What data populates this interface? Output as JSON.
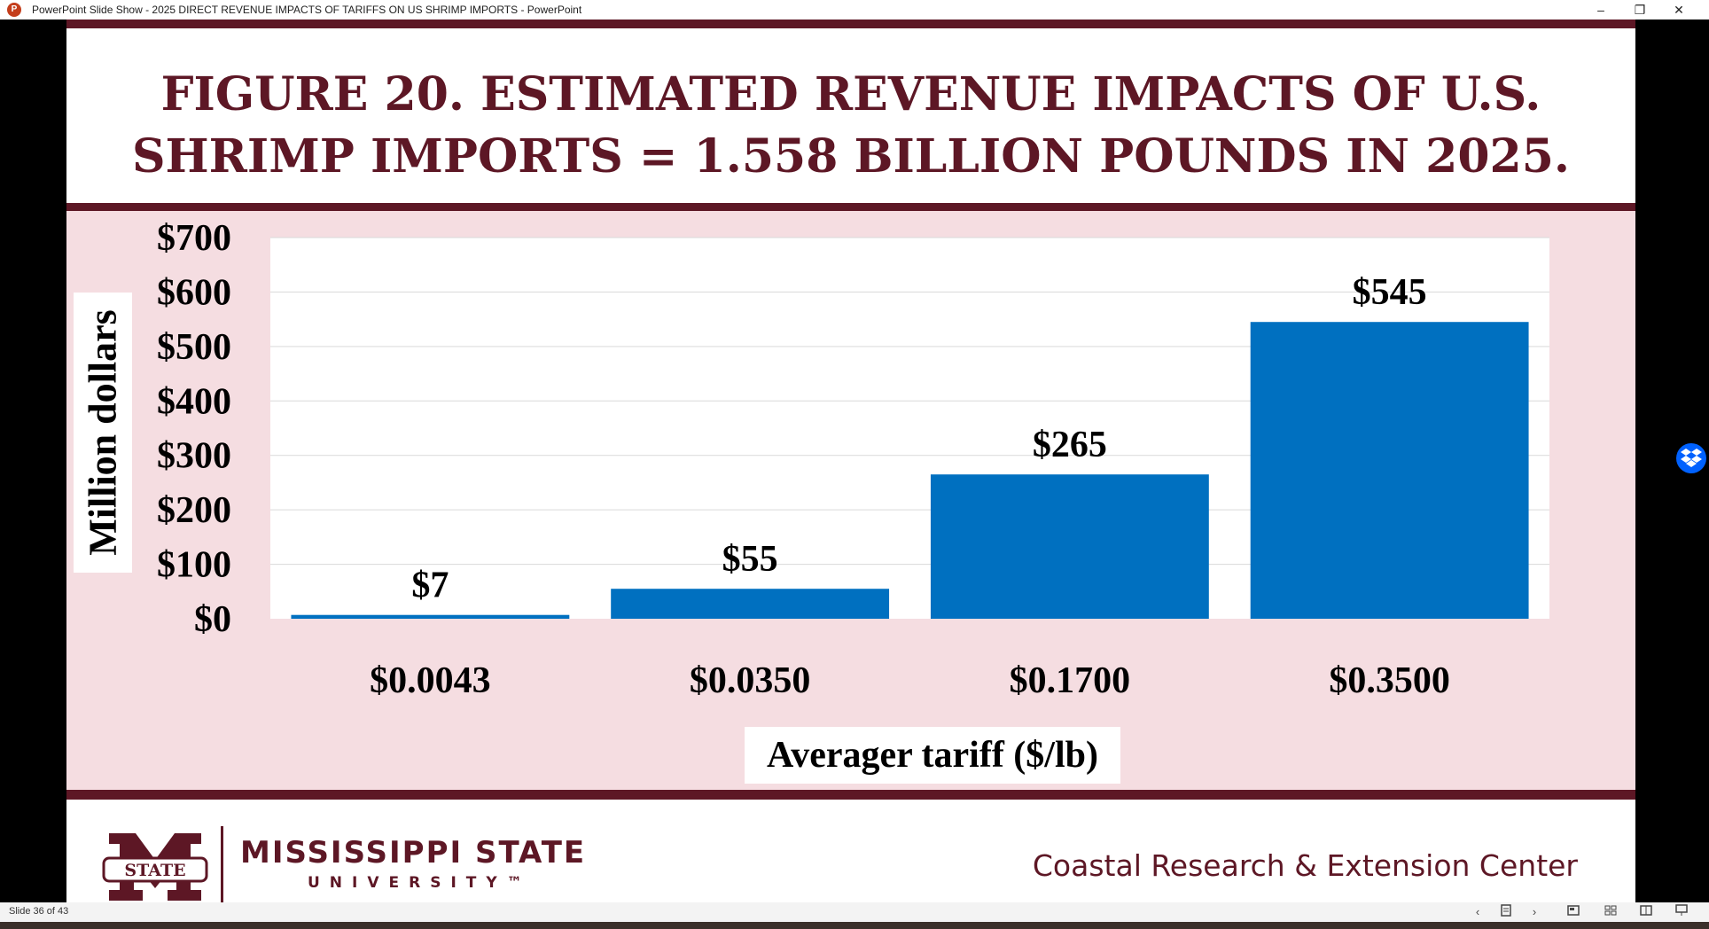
{
  "window": {
    "title": "PowerPoint Slide Show  -  2025 DIRECT REVENUE IMPACTS OF TARIFFS ON US SHRIMP IMPORTS - PowerPoint",
    "app_icon": "P",
    "minimize": "–",
    "restore": "❐",
    "close": "✕"
  },
  "slide": {
    "title_line1": "FIGURE 20. ESTIMATED REVENUE IMPACTS OF U.S.",
    "title_line2": "SHRIMP IMPORTS = 1.558 BILLION POUNDS IN 2025.",
    "footer": {
      "logo_text": "STATE",
      "university_name": "MISSISSIPPI STATE",
      "university_sub": "UNIVERSITY™",
      "center_name": "Coastal Research & Extension Center"
    }
  },
  "chart_data": {
    "type": "bar",
    "categories": [
      "$0.0043",
      "$0.0350",
      "$0.1700",
      "$0.3500"
    ],
    "values": [
      7,
      55,
      265,
      545
    ],
    "data_labels": [
      "$7",
      "$55",
      "$265",
      "$545"
    ],
    "ylabel": "Million dollars",
    "xlabel": "Averager tariff ($/lb)",
    "ylim": [
      0,
      700
    ],
    "yticks": [
      "$0",
      "$100",
      "$200",
      "$300",
      "$400",
      "$500",
      "$600",
      "$700"
    ],
    "grid": true,
    "bar_color": "#0070c0",
    "legend": "none"
  },
  "status": {
    "slide_count": "Slide 36 of 43",
    "prev_icon": "‹",
    "next_icon": "›"
  },
  "colors": {
    "maroon": "#5d1725",
    "chart_background": "#f5dde1",
    "bar": "#0070c0"
  }
}
